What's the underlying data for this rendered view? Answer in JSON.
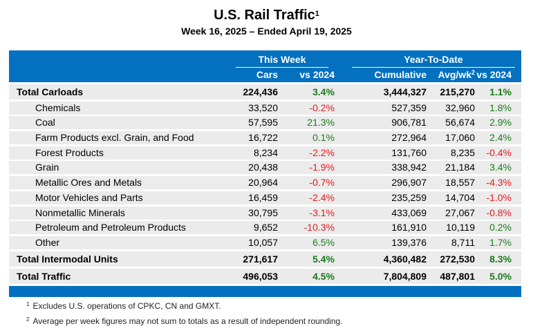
{
  "title": "U.S. Rail Traffic",
  "title_footnote_mark": "1",
  "subtitle": "Week 16, 2025 – Ended April 19, 2025",
  "header": {
    "group_this_week": "This Week",
    "group_ytd": "Year-To-Date",
    "columns": {
      "cars": "Cars",
      "week_vs": "vs 2024",
      "cumulative": "Cumulative",
      "avg_wk": "Avg/wk",
      "avg_wk_footnote_mark": "2",
      "ytd_vs": "vs 2024"
    }
  },
  "rows": [
    {
      "label": "Total Carloads",
      "total": true,
      "cars": "224,436",
      "week_vs": "3.4%",
      "cumulative": "3,444,327",
      "avg_wk": "215,270",
      "ytd_vs": "1.1%"
    },
    {
      "label": "Chemicals",
      "total": false,
      "cars": "33,520",
      "week_vs": "-0.2%",
      "cumulative": "527,359",
      "avg_wk": "32,960",
      "ytd_vs": "1.8%"
    },
    {
      "label": "Coal",
      "total": false,
      "cars": "57,595",
      "week_vs": "21.3%",
      "cumulative": "906,781",
      "avg_wk": "56,674",
      "ytd_vs": "2.9%"
    },
    {
      "label": "Farm Products excl. Grain, and Food",
      "total": false,
      "cars": "16,722",
      "week_vs": "0.1%",
      "cumulative": "272,964",
      "avg_wk": "17,060",
      "ytd_vs": "2.4%"
    },
    {
      "label": "Forest Products",
      "total": false,
      "cars": "8,234",
      "week_vs": "-2.2%",
      "cumulative": "131,760",
      "avg_wk": "8,235",
      "ytd_vs": "-0.4%"
    },
    {
      "label": "Grain",
      "total": false,
      "cars": "20,438",
      "week_vs": "-1.9%",
      "cumulative": "338,942",
      "avg_wk": "21,184",
      "ytd_vs": "3.4%"
    },
    {
      "label": "Metallic Ores and Metals",
      "total": false,
      "cars": "20,964",
      "week_vs": "-0.7%",
      "cumulative": "296,907",
      "avg_wk": "18,557",
      "ytd_vs": "-4.3%"
    },
    {
      "label": "Motor Vehicles and Parts",
      "total": false,
      "cars": "16,459",
      "week_vs": "-2.4%",
      "cumulative": "235,259",
      "avg_wk": "14,704",
      "ytd_vs": "-1.0%"
    },
    {
      "label": "Nonmetallic Minerals",
      "total": false,
      "cars": "30,795",
      "week_vs": "-3.1%",
      "cumulative": "433,069",
      "avg_wk": "27,067",
      "ytd_vs": "-0.8%"
    },
    {
      "label": "Petroleum and Petroleum Products",
      "total": false,
      "cars": "9,652",
      "week_vs": "-10.3%",
      "cumulative": "161,910",
      "avg_wk": "10,119",
      "ytd_vs": "0.2%"
    },
    {
      "label": "Other",
      "total": false,
      "cars": "10,057",
      "week_vs": "6.5%",
      "cumulative": "139,376",
      "avg_wk": "8,711",
      "ytd_vs": "1.7%"
    },
    {
      "label": "Total Intermodal Units",
      "total": true,
      "cars": "271,617",
      "week_vs": "5.4%",
      "cumulative": "4,360,482",
      "avg_wk": "272,530",
      "ytd_vs": "8.3%"
    },
    {
      "label": "Total Traffic",
      "total": true,
      "cars": "496,053",
      "week_vs": "4.5%",
      "cumulative": "7,804,809",
      "avg_wk": "487,801",
      "ytd_vs": "5.0%"
    }
  ],
  "footnotes": [
    {
      "mark": "1",
      "text": "Excludes U.S. operations of CPKC, CN and GMXT."
    },
    {
      "mark": "2",
      "text": "Average per week figures may not sum to totals as a result of independent rounding."
    }
  ],
  "colors": {
    "header_blue": "#0370c0",
    "row_gray": "#ebebeb",
    "positive": "#1a7a1a",
    "negative": "#e8191e"
  }
}
